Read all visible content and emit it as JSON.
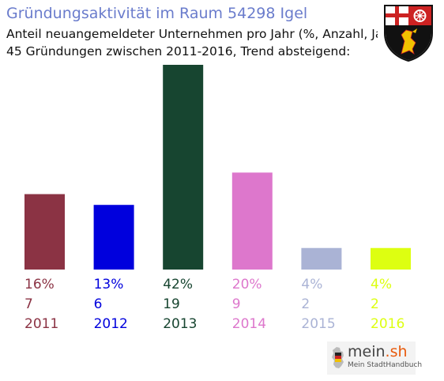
{
  "header": {
    "title": "Gründungsaktivität im Raum 54298 Igel",
    "subtitle_line1": "Anteil neuangemeldeter Unternehmen pro Jahr (%, Anzahl, Jahr)",
    "subtitle_line2": "45 Gründungen zwischen 2011-2016, Trend absteigend:"
  },
  "crest": {
    "icon": "rhineland-palatinate-coat-of-arms"
  },
  "footer": {
    "logo_name": "mein",
    "logo_domain": ".sh",
    "logo_tagline": "Mein StadtHandbuch",
    "logo_icon": "germany-map-icon"
  },
  "chart_data": {
    "type": "bar",
    "categories": [
      "2011",
      "2012",
      "2013",
      "2014",
      "2015",
      "2016"
    ],
    "values": [
      7,
      6,
      19,
      9,
      2,
      2
    ],
    "percent_labels": [
      "16%",
      "13%",
      "42%",
      "20%",
      "4%",
      "4%"
    ],
    "count_labels": [
      "7",
      "6",
      "19",
      "9",
      "2",
      "2"
    ],
    "colors": [
      "#8b3344",
      "#0000dd",
      "#174530",
      "#dd77cc",
      "#aab3d5",
      "#ddff11"
    ],
    "ylim": [
      0,
      19
    ],
    "grid": false,
    "legend": "none"
  }
}
